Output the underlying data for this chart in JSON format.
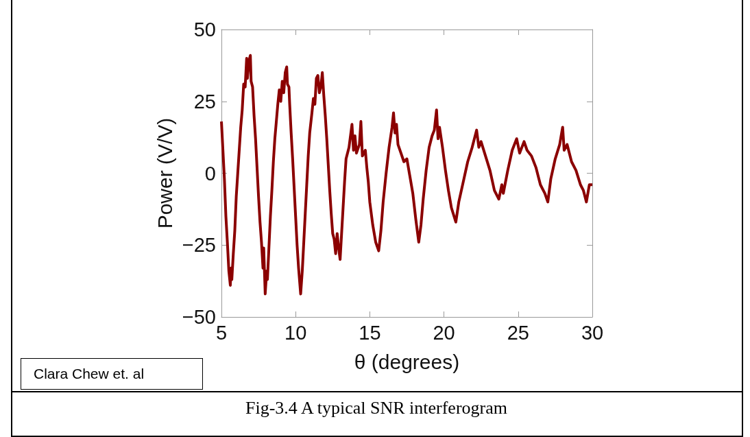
{
  "chart_data": {
    "type": "line",
    "title": "Fig-3.4 A typical SNR interferogram",
    "xlabel": "θ (degrees)",
    "ylabel": "Power (V/V)",
    "annotations": [
      "Clara Chew et. al"
    ],
    "xlim": [
      5,
      30
    ],
    "xticks": [
      5,
      10,
      15,
      20,
      25,
      30
    ],
    "ylim": [
      -50,
      50
    ],
    "yticks": [
      -50,
      -25,
      0,
      25,
      50
    ],
    "grid": false,
    "marker": "none",
    "line_style": "solid",
    "x": [
      5.0,
      5.1,
      5.2,
      5.3,
      5.4,
      5.5,
      5.6,
      5.65,
      5.7,
      5.8,
      5.9,
      6.0,
      6.1,
      6.2,
      6.3,
      6.4,
      6.5,
      6.6,
      6.7,
      6.75,
      6.85,
      6.95,
      7.0,
      7.1,
      7.2,
      7.3,
      7.4,
      7.5,
      7.6,
      7.7,
      7.8,
      7.85,
      7.95,
      8.05,
      8.1,
      8.2,
      8.3,
      8.4,
      8.5,
      8.6,
      8.7,
      8.8,
      8.9,
      9.0,
      9.1,
      9.2,
      9.3,
      9.4,
      9.45,
      9.55,
      9.6,
      9.7,
      9.8,
      9.9,
      10.0,
      10.1,
      10.2,
      10.34,
      10.45,
      10.55,
      10.65,
      10.75,
      10.85,
      10.95,
      11.1,
      11.2,
      11.3,
      11.4,
      11.5,
      11.6,
      11.7,
      11.8,
      11.9,
      12.0,
      12.1,
      12.2,
      12.3,
      12.4,
      12.5,
      12.6,
      12.7,
      12.8,
      12.9,
      13.0,
      13.1,
      13.2,
      13.3,
      13.4,
      13.6,
      13.8,
      13.9,
      14.0,
      14.1,
      14.3,
      14.4,
      14.5,
      14.7,
      14.8,
      14.9,
      15.0,
      15.2,
      15.4,
      15.6,
      15.75,
      15.9,
      16.1,
      16.3,
      16.5,
      16.6,
      16.7,
      16.8,
      16.9,
      17.1,
      17.3,
      17.5,
      17.7,
      17.9,
      18.1,
      18.3,
      18.45,
      18.6,
      18.8,
      19.0,
      19.2,
      19.35,
      19.5,
      19.6,
      19.7,
      19.9,
      20.1,
      20.3,
      20.5,
      20.8,
      21.0,
      21.3,
      21.6,
      21.9,
      22.2,
      22.35,
      22.5,
      22.8,
      23.1,
      23.4,
      23.7,
      23.9,
      24.0,
      24.3,
      24.6,
      24.9,
      25.1,
      25.4,
      25.6,
      25.9,
      26.2,
      26.5,
      26.8,
      27.0,
      27.2,
      27.5,
      27.8,
      28.0,
      28.1,
      28.3,
      28.6,
      28.9,
      29.2,
      29.4,
      29.6,
      29.8,
      30.0
    ],
    "series": [
      {
        "color": "#8b0000",
        "values": [
          18,
          8,
          -2,
          -15,
          -24,
          -34,
          -39,
          -33,
          -37,
          -28,
          -20,
          -8,
          0,
          8,
          16,
          22,
          31,
          30,
          40,
          33,
          39,
          41,
          32,
          30,
          20,
          12,
          2,
          -8,
          -17,
          -24,
          -33,
          -26,
          -42,
          -34,
          -37,
          -26,
          -15,
          -6,
          4,
          12,
          18,
          24,
          29,
          25,
          32,
          28,
          35,
          37,
          31,
          30,
          24,
          14,
          5,
          -5,
          -15,
          -25,
          -33,
          -42,
          -34,
          -24,
          -14,
          -4,
          6,
          14,
          21,
          26,
          24,
          33,
          34,
          28,
          30,
          35,
          27,
          20,
          12,
          3,
          -6,
          -14,
          -21,
          -23,
          -28,
          -21,
          -26,
          -30,
          -21,
          -12,
          -3,
          5,
          9,
          17,
          8,
          13,
          7,
          10,
          18,
          6,
          8,
          2,
          -3,
          -10,
          -18,
          -24,
          -27,
          -20,
          -10,
          0,
          9,
          16,
          21,
          14,
          17,
          10,
          7,
          4,
          5,
          -1,
          -7,
          -16,
          -24,
          -18,
          -9,
          1,
          9,
          13,
          15,
          22,
          12,
          16,
          9,
          1,
          -6,
          -12,
          -17,
          -10,
          -3,
          4,
          9,
          15,
          9,
          11,
          6,
          1,
          -6,
          -9,
          -4,
          -7,
          1,
          8,
          12,
          7,
          11,
          8,
          6,
          2,
          -4,
          -7,
          -10,
          -2,
          5,
          10,
          16,
          8,
          10,
          4,
          1,
          -4,
          -6,
          -10,
          -4,
          -4
        ]
      }
    ]
  }
}
